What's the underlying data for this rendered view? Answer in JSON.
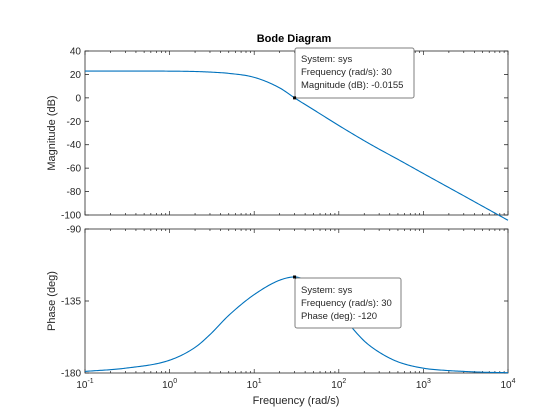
{
  "chart_data": {
    "type": "line",
    "title": "Bode Diagram",
    "xlabel": "Frequency  (rad/s)",
    "xscale": "log",
    "xlim": [
      0.1,
      10000
    ],
    "x_ticks": [
      {
        "base": "10",
        "exp": "-1"
      },
      {
        "base": "10",
        "exp": "0"
      },
      {
        "base": "10",
        "exp": "1"
      },
      {
        "base": "10",
        "exp": "2"
      },
      {
        "base": "10",
        "exp": "3"
      },
      {
        "base": "10",
        "exp": "4"
      }
    ],
    "grid": false,
    "line_color": "#0072BD",
    "panels": [
      {
        "name": "magnitude",
        "ylabel": "Magnitude (dB)",
        "ylim": [
          -100,
          40
        ],
        "y_ticks": [
          "40",
          "20",
          "0",
          "-20",
          "-40",
          "-60",
          "-80",
          "-100"
        ],
        "y_tick_values": [
          40,
          20,
          0,
          -20,
          -40,
          -60,
          -80,
          -100
        ],
        "series": {
          "x": [
            0.1,
            0.3,
            1,
            2,
            3,
            5,
            10,
            20,
            30,
            50,
            100,
            200,
            300,
            500,
            1000,
            2000,
            3000,
            5000,
            10000
          ],
          "y": [
            22.9,
            22.9,
            22.8,
            22.5,
            22.0,
            20.9,
            17.5,
            8.5,
            -0.0155,
            -10.0,
            -23.6,
            -36.6,
            -43.8,
            -52.5,
            -64.6,
            -76.6,
            -83.6,
            -92.5,
            -104.5
          ]
        },
        "datatip": {
          "x": 30,
          "y": -0.0155,
          "lines": [
            "System: sys",
            "Frequency (rad/s): 30",
            "Magnitude (dB): -0.0155"
          ]
        }
      },
      {
        "name": "phase",
        "ylabel": "Phase (deg)",
        "ylim": [
          -180,
          -90
        ],
        "y_ticks": [
          "-90",
          "-135",
          "-180"
        ],
        "y_tick_values": [
          -90,
          -135,
          -180
        ],
        "series": {
          "x": [
            0.1,
            0.3,
            1,
            2,
            3,
            5,
            10,
            20,
            30,
            50,
            100,
            200,
            300,
            500,
            1000,
            2000,
            3000,
            5000,
            10000
          ],
          "y": [
            -179,
            -177,
            -172,
            -164,
            -156,
            -144,
            -131,
            -122,
            -120,
            -125,
            -142,
            -160,
            -167,
            -173,
            -177,
            -178.5,
            -179,
            -179.5,
            -179.8
          ]
        },
        "datatip": {
          "x": 30,
          "y": -120,
          "lines": [
            "System: sys",
            "Frequency (rad/s): 30",
            "Phase (deg): -120"
          ]
        }
      }
    ]
  }
}
